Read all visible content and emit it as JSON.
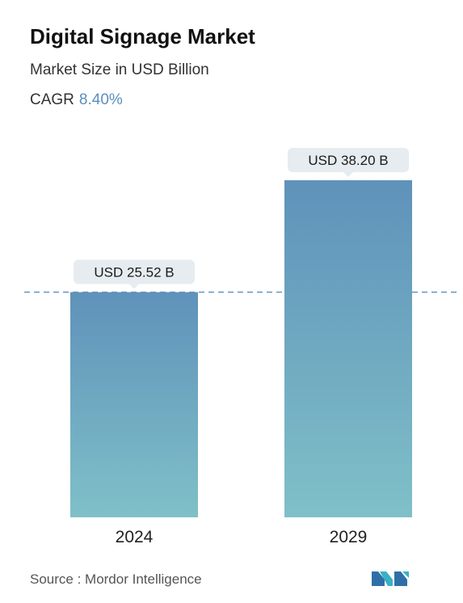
{
  "header": {
    "title": "Digital Signage Market",
    "subtitle": "Market Size in USD Billion",
    "cagr_label": "CAGR",
    "cagr_value": "8.40%"
  },
  "footer": {
    "source": "Source :  Mordor Intelligence"
  },
  "colors": {
    "bar_top": "#5f92ba",
    "bar_bottom": "#7fc0c8",
    "label_bg": "#e6ecef",
    "dash": "#5b8fbe",
    "accent": "#5b8fbe"
  },
  "chart_data": {
    "type": "bar",
    "title": "Digital Signage Market",
    "subtitle": "Market Size in USD Billion",
    "categories": [
      "2024",
      "2029"
    ],
    "values": [
      25.52,
      38.2
    ],
    "data_labels": [
      "USD 25.52 B",
      "USD 38.20 B"
    ],
    "xlabel": "",
    "ylabel": "",
    "grid": false,
    "legend": "none",
    "reference_line": 25.52
  }
}
